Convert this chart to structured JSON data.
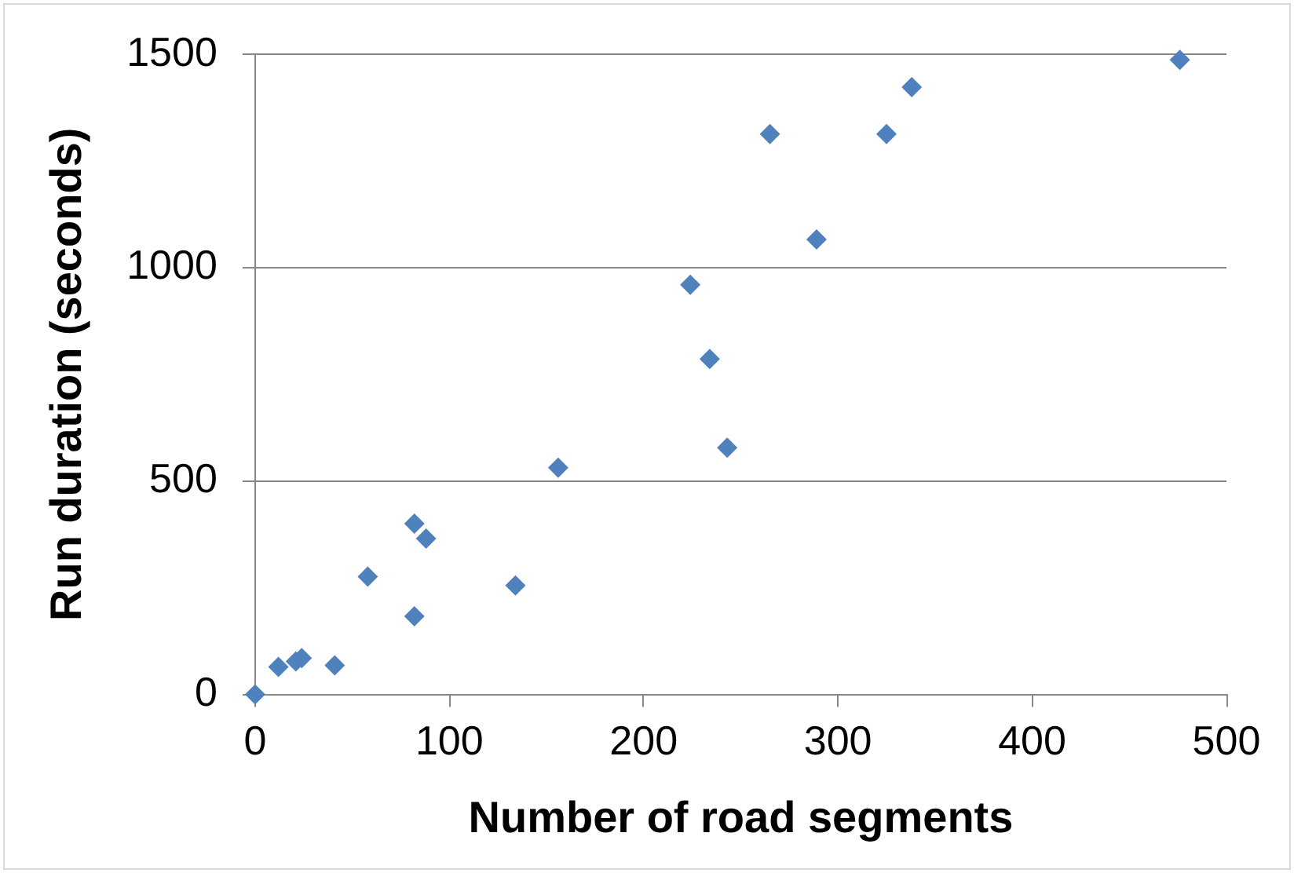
{
  "chart_data": {
    "type": "scatter",
    "xlabel": "Number of road segments",
    "ylabel": "Run duration (seconds)",
    "x": [
      0,
      12,
      21,
      24,
      41,
      58,
      82,
      82,
      88,
      134,
      156,
      224,
      234,
      243,
      265,
      289,
      325,
      338,
      476
    ],
    "series": [
      {
        "color": "#4f81bd",
        "values": [
          0,
          64,
          77,
          85,
          68,
          276,
          183,
          400,
          365,
          255,
          531,
          960,
          786,
          578,
          1313,
          1066,
          1313,
          1423,
          1487
        ]
      }
    ],
    "xlim": [
      0,
      500
    ],
    "xticks": [
      0,
      100,
      200,
      300,
      400,
      500
    ],
    "ylim": [
      0,
      1500
    ],
    "yticks": [
      0,
      500,
      1000,
      1500
    ],
    "grid": "y",
    "legend": false,
    "marker": "diamond"
  }
}
